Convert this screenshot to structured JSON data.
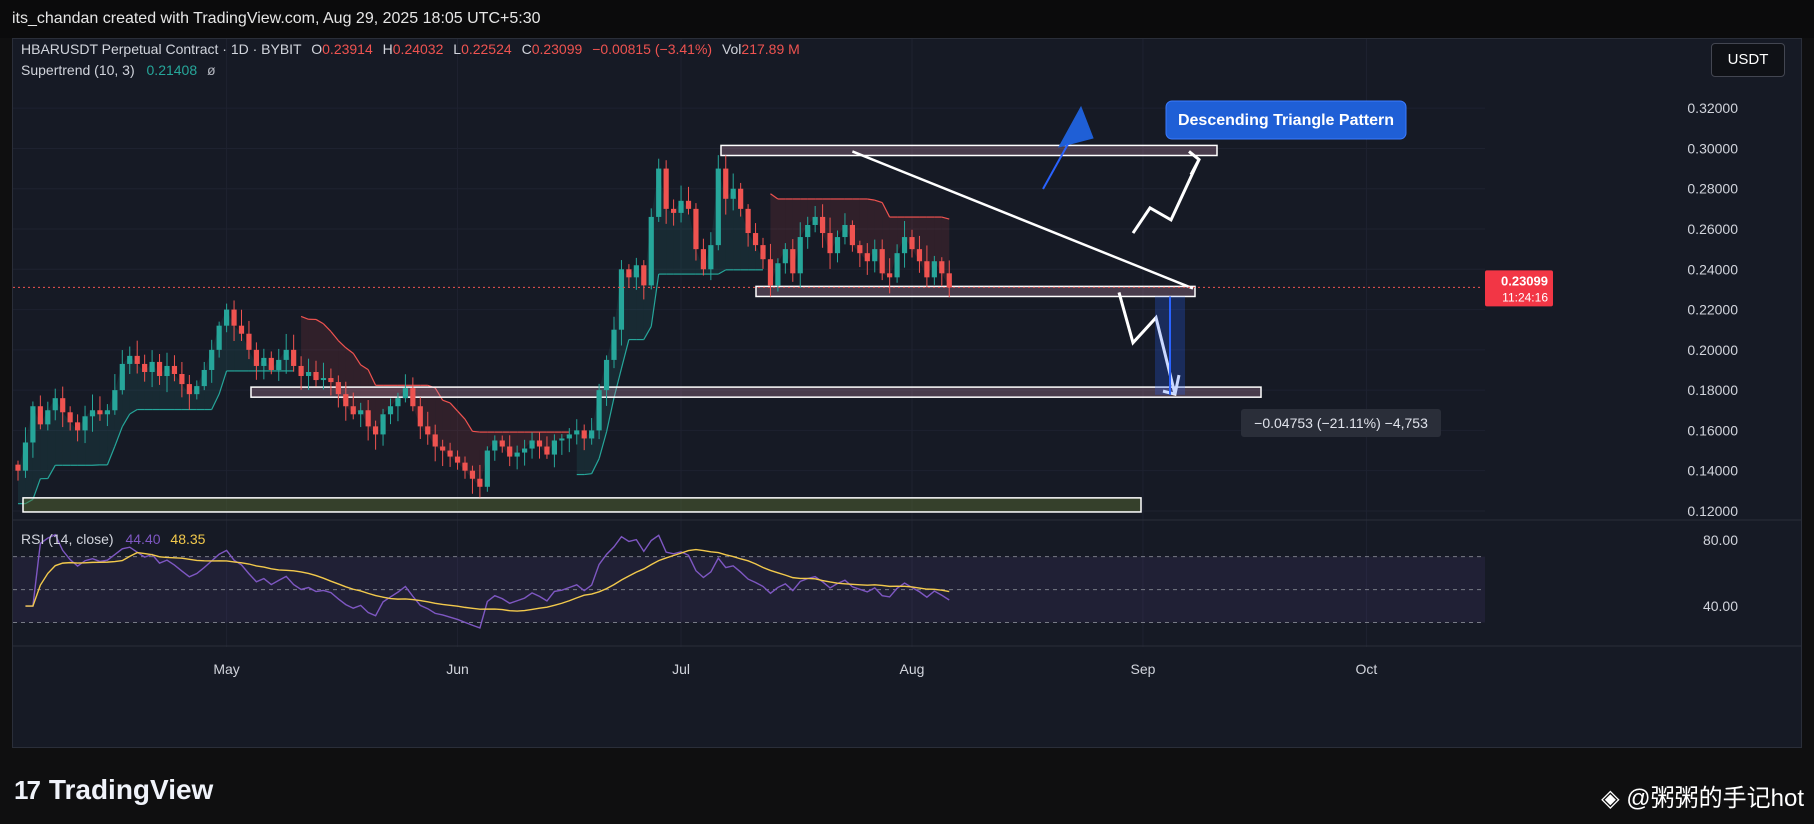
{
  "header": {
    "credit": "its_chandan created with TradingView.com, Aug 29, 2025 18:05 UTC+5:30"
  },
  "legend": {
    "symbol": "HBARUSDT Perpetual Contract · 1D · BYBIT",
    "o_label": "O",
    "o_value": "0.23914",
    "h_label": "H",
    "h_value": "0.24032",
    "l_label": "L",
    "l_value": "0.22524",
    "c_label": "C",
    "c_value": "0.23099",
    "change": "−0.00815 (−3.41%)",
    "vol_label": "Vol",
    "vol_value": "217.89 M",
    "indicator": "Supertrend (10, 3)",
    "indicator_value": "0.21408",
    "indicator_icon": "eye-slash-icon"
  },
  "currency_button": "USDT",
  "colors": {
    "up": "#26a69a",
    "down": "#ef5350",
    "background": "#161a25",
    "rsi": "#7e57c2",
    "rsi_ma": "#f2c94c"
  },
  "annotations": {
    "pattern_label": "Descending Triangle Pattern",
    "measure_label": "−0.04753 (−21.11%) −4,753",
    "price_label": "0.23099",
    "countdown": "11:24:16",
    "price_partial": "0.22000"
  },
  "rsi_legend": {
    "name": "RSI (14, close)",
    "rsi_value": "44.40",
    "ma_value": "48.35"
  },
  "footer": {
    "brand": "TradingView",
    "watermark": "◈ @粥粥的手记hot"
  },
  "chart_data": {
    "type": "candlestick",
    "price_axis": {
      "ticks": [
        "0.32000",
        "0.30000",
        "0.28000",
        "0.26000",
        "0.24000",
        "0.22000",
        "0.20000",
        "0.18000",
        "0.16000",
        "0.14000",
        "0.12000"
      ],
      "ylim": [
        0.117,
        0.332
      ]
    },
    "time_axis": {
      "labels": [
        {
          "text": "May",
          "index": 28
        },
        {
          "text": "Jun",
          "index": 59
        },
        {
          "text": "Jul",
          "index": 89
        },
        {
          "text": "Aug",
          "index": 120
        },
        {
          "text": "Sep",
          "index": 151
        },
        {
          "text": "Oct",
          "index": 181
        }
      ]
    },
    "closes": [
      0.14,
      0.154,
      0.172,
      0.163,
      0.17,
      0.176,
      0.169,
      0.164,
      0.16,
      0.167,
      0.17,
      0.168,
      0.17,
      0.18,
      0.193,
      0.197,
      0.193,
      0.189,
      0.194,
      0.187,
      0.192,
      0.188,
      0.183,
      0.178,
      0.182,
      0.19,
      0.2,
      0.212,
      0.22,
      0.212,
      0.208,
      0.2,
      0.192,
      0.196,
      0.19,
      0.195,
      0.2,
      0.192,
      0.187,
      0.189,
      0.185,
      0.186,
      0.184,
      0.178,
      0.172,
      0.168,
      0.17,
      0.162,
      0.158,
      0.168,
      0.172,
      0.176,
      0.181,
      0.172,
      0.162,
      0.158,
      0.152,
      0.15,
      0.147,
      0.144,
      0.14,
      0.136,
      0.132,
      0.15,
      0.155,
      0.152,
      0.147,
      0.149,
      0.151,
      0.155,
      0.152,
      0.148,
      0.155,
      0.156,
      0.158,
      0.16,
      0.156,
      0.16,
      0.18,
      0.195,
      0.21,
      0.24,
      0.236,
      0.242,
      0.232,
      0.266,
      0.29,
      0.27,
      0.268,
      0.274,
      0.27,
      0.25,
      0.24,
      0.252,
      0.29,
      0.275,
      0.28,
      0.27,
      0.258,
      0.252,
      0.245,
      0.232,
      0.243,
      0.25,
      0.238,
      0.256,
      0.262,
      0.266,
      0.258,
      0.248,
      0.256,
      0.262,
      0.252,
      0.248,
      0.244,
      0.25,
      0.238,
      0.236,
      0.248,
      0.256,
      0.25,
      0.244,
      0.236,
      0.244,
      0.238,
      0.231
    ],
    "supertrend": {
      "value": 0.21408,
      "direction": "up"
    },
    "zones": [
      {
        "low": 0.2965,
        "high": 0.3015
      },
      {
        "low": 0.2265,
        "high": 0.2315
      },
      {
        "low": 0.1765,
        "high": 0.1815
      },
      {
        "low": 0.1195,
        "high": 0.1265
      }
    ],
    "measure": {
      "from": 0.22524,
      "to": 0.17771,
      "change": -0.04753,
      "percent": -21.11
    },
    "rsi": {
      "ticks": [
        "80.00",
        "40.00"
      ],
      "ylim": [
        20,
        88
      ],
      "bands": [
        70,
        50,
        30
      ],
      "last": 44.4,
      "ma_last": 48.35
    }
  }
}
